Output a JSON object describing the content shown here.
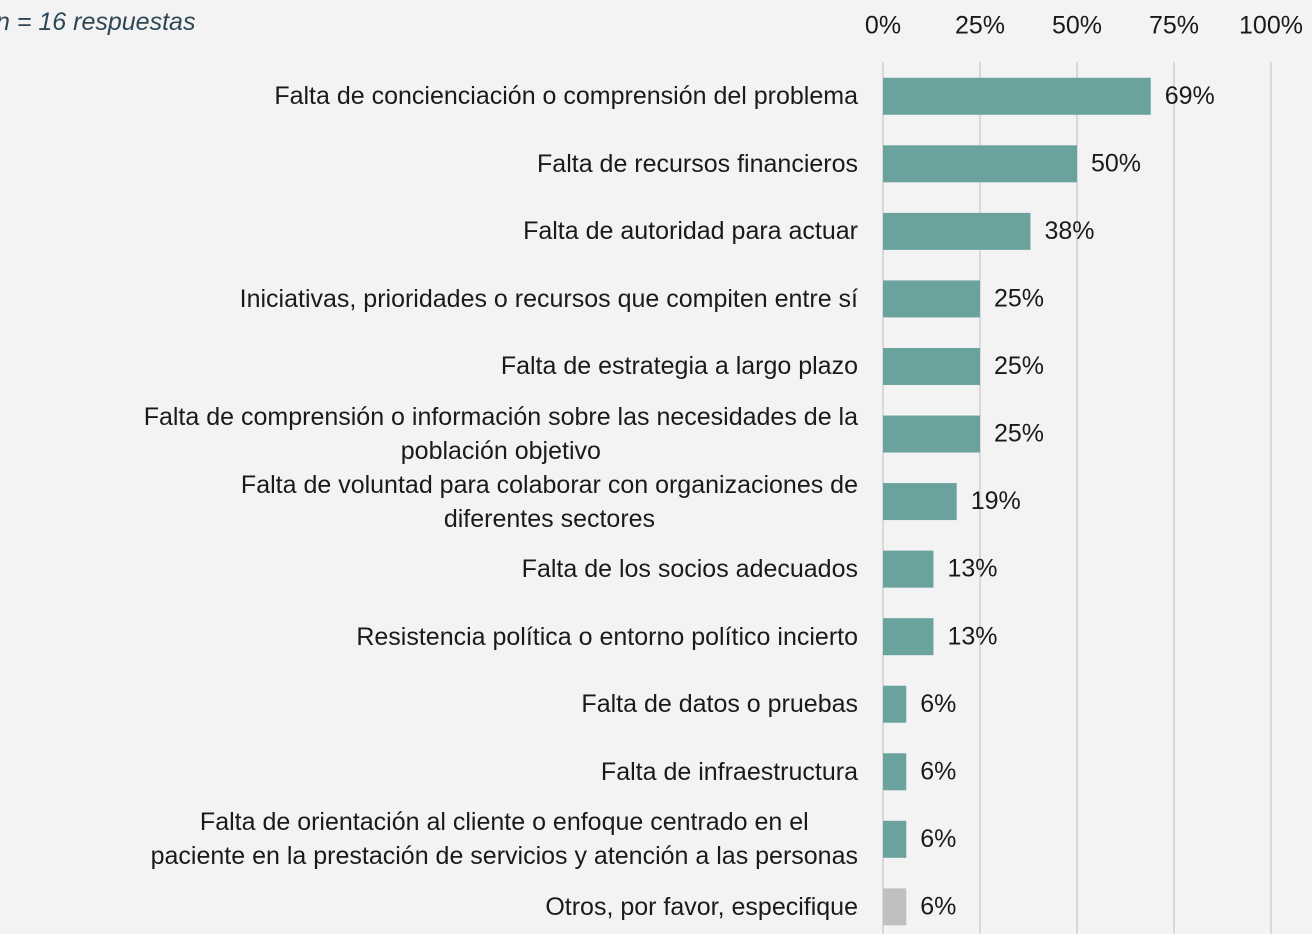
{
  "chart_data": {
    "type": "hbar",
    "subtitle": "n = 16 respuestas",
    "categories": [
      "Falta de concienciación o comprensión del problema",
      "Falta de recursos financieros",
      "Falta de autoridad para actuar",
      "Iniciativas, prioridades o recursos que compiten entre sí",
      "Falta de estrategia a largo plazo",
      "Falta de comprensión o información sobre las necesidades de la\npoblación objetivo",
      "Falta de voluntad para colaborar con organizaciones de\ndiferentes sectores",
      "Falta de los socios adecuados",
      "Resistencia política o entorno político incierto",
      "Falta de datos o pruebas",
      "Falta de infraestructura",
      "Falta de orientación al cliente o enfoque centrado en el\npaciente en la prestación de servicios y atención a las personas",
      "Otros, por favor, especifique"
    ],
    "values": [
      69,
      50,
      38,
      25,
      25,
      25,
      19,
      13,
      13,
      6,
      6,
      6,
      6
    ],
    "value_labels": [
      "69%",
      "50%",
      "38%",
      "25%",
      "25%",
      "25%",
      "19%",
      "13%",
      "13%",
      "6%",
      "6%",
      "6%",
      "6%"
    ],
    "colors": [
      "#6aa39e",
      "#6aa39e",
      "#6aa39e",
      "#6aa39e",
      "#6aa39e",
      "#6aa39e",
      "#6aa39e",
      "#6aa39e",
      "#6aa39e",
      "#6aa39e",
      "#6aa39e",
      "#6aa39e",
      "#c0c0c0"
    ],
    "xlim": [
      0,
      100
    ],
    "xticks": [
      {
        "value": 0,
        "label": "0%"
      },
      {
        "value": 25,
        "label": "25%"
      },
      {
        "value": 50,
        "label": "50%"
      },
      {
        "value": 75,
        "label": "75%"
      },
      {
        "value": 100,
        "label": "100%"
      }
    ],
    "grid": true
  }
}
